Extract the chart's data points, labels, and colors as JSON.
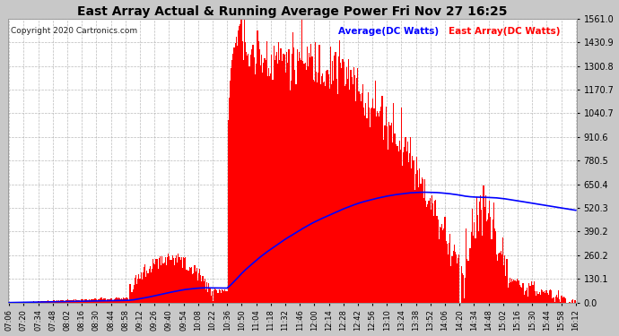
{
  "title": "East Array Actual & Running Average Power Fri Nov 27 16:25",
  "copyright": "Copyright 2020 Cartronics.com",
  "legend_avg": "Average(DC Watts)",
  "legend_east": "East Array(DC Watts)",
  "yticks": [
    0.0,
    130.1,
    260.2,
    390.2,
    520.3,
    650.4,
    780.5,
    910.6,
    1040.7,
    1170.7,
    1300.8,
    1430.9,
    1561.0
  ],
  "ymax": 1561.0,
  "ymin": 0.0,
  "bar_color": "#ff0000",
  "avg_color": "#0000ff",
  "background_color": "#c8c8c8",
  "plot_bg_color": "#ffffff",
  "title_color": "#000000",
  "grid_color": "#aaaaaa",
  "xtick_labels": [
    "07:06",
    "07:20",
    "07:34",
    "07:48",
    "08:02",
    "08:16",
    "08:30",
    "08:44",
    "08:58",
    "09:12",
    "09:26",
    "09:40",
    "09:54",
    "10:08",
    "10:22",
    "10:36",
    "10:50",
    "11:04",
    "11:18",
    "11:32",
    "11:46",
    "12:00",
    "12:14",
    "12:28",
    "12:42",
    "12:56",
    "13:10",
    "13:24",
    "13:38",
    "13:52",
    "14:06",
    "14:20",
    "14:34",
    "14:48",
    "15:02",
    "15:16",
    "15:30",
    "15:44",
    "15:58",
    "16:12"
  ],
  "num_points": 560
}
